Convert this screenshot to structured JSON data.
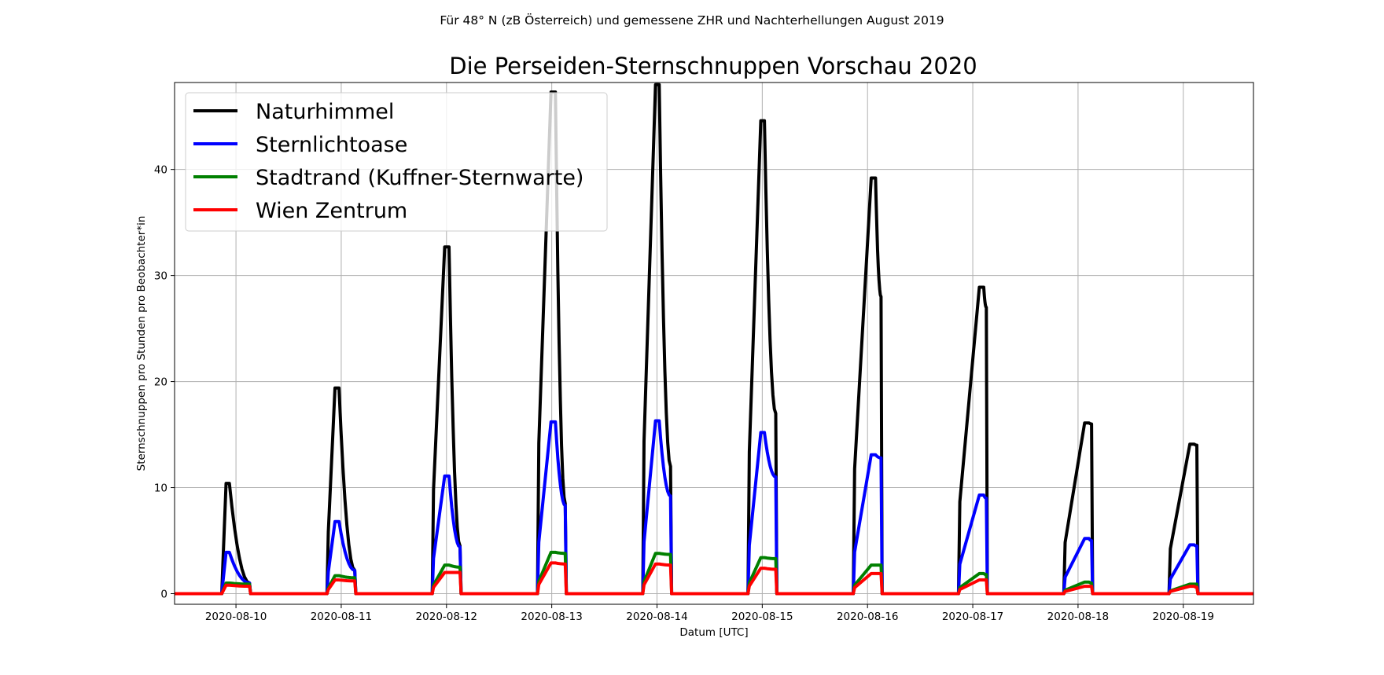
{
  "suptitle": "Für 48° N (zB Österreich) und gemessene ZHR und Nachterhellungen August 2019",
  "chart_data": {
    "type": "line",
    "title": "Die Perseiden-Sternschnuppen Vorschau 2020",
    "xlabel": "Datum [UTC]",
    "ylabel": "Sternschnuppen pro Stunden pro Beobachter*in",
    "xlim": [
      "2020-08-09 10:00",
      "2020-08-19 16:00"
    ],
    "ylim": [
      -1,
      48.2
    ],
    "grid": true,
    "legend_position": "top-left",
    "x_ticks": [
      "2020-08-10",
      "2020-08-11",
      "2020-08-12",
      "2020-08-13",
      "2020-08-14",
      "2020-08-15",
      "2020-08-16",
      "2020-08-17",
      "2020-08-18",
      "2020-08-19"
    ],
    "y_ticks": [
      0,
      10,
      20,
      30,
      40
    ],
    "nights": [
      {
        "date": "2020-08-09",
        "start": "20:45",
        "end": "03:20",
        "peak": "21:45",
        "peak_end": "22:30"
      },
      {
        "date": "2020-08-10",
        "start": "20:45",
        "end": "03:20",
        "peak": "22:35",
        "peak_end": "23:30"
      },
      {
        "date": "2020-08-11",
        "start": "20:45",
        "end": "03:20",
        "peak": "23:35",
        "peak_end": "00:35"
      },
      {
        "date": "2020-08-12",
        "start": "20:45",
        "end": "03:20",
        "peak": "23:50",
        "peak_end": "00:50"
      },
      {
        "date": "2020-08-13",
        "start": "20:45",
        "end": "03:20",
        "peak": "23:40",
        "peak_end": "00:30"
      },
      {
        "date": "2020-08-14",
        "start": "20:45",
        "end": "03:20",
        "peak": "23:40",
        "peak_end": "00:30"
      },
      {
        "date": "2020-08-15",
        "start": "20:45",
        "end": "03:20",
        "peak": "00:50",
        "peak_end": "01:50"
      },
      {
        "date": "2020-08-16",
        "start": "20:45",
        "end": "03:20",
        "peak": "01:30",
        "peak_end": "02:30"
      },
      {
        "date": "2020-08-17",
        "start": "20:45",
        "end": "03:20",
        "peak": "01:30",
        "peak_end": "02:30"
      },
      {
        "date": "2020-08-18",
        "start": "20:45",
        "end": "03:20",
        "peak": "01:30",
        "peak_end": "02:30"
      }
    ],
    "series": [
      {
        "name": "Naturhimmel",
        "color": "#000000",
        "peaks": [
          10.4,
          19.4,
          32.7,
          47.3,
          48.0,
          44.6,
          39.2,
          28.9,
          16.1,
          14.1
        ],
        "ends": [
          1.0,
          2.2,
          4.5,
          8.5,
          12.0,
          17.0,
          28.0,
          27.0,
          16.0,
          14.0
        ]
      },
      {
        "name": "Sternlichtoase",
        "color": "#0000ff",
        "peaks": [
          3.9,
          6.8,
          11.1,
          16.2,
          16.3,
          15.2,
          13.1,
          9.3,
          5.2,
          4.6
        ],
        "ends": [
          1.0,
          2.2,
          4.4,
          8.3,
          9.2,
          11.0,
          12.8,
          9.0,
          5.0,
          4.5
        ]
      },
      {
        "name": "Stadtrand (Kuffner-Sternwarte)",
        "color": "#008000",
        "peaks": [
          1.0,
          1.7,
          2.7,
          3.9,
          3.8,
          3.4,
          2.7,
          1.9,
          1.1,
          0.9
        ],
        "ends": [
          0.9,
          1.5,
          2.5,
          3.8,
          3.7,
          3.3,
          2.7,
          1.8,
          1.0,
          0.9
        ]
      },
      {
        "name": "Wien Zentrum",
        "color": "#ff0000",
        "peaks": [
          0.8,
          1.3,
          2.0,
          2.9,
          2.8,
          2.4,
          1.9,
          1.3,
          0.7,
          0.7
        ],
        "ends": [
          0.7,
          1.2,
          2.0,
          2.8,
          2.7,
          2.3,
          1.9,
          1.3,
          0.7,
          0.6
        ]
      }
    ]
  }
}
